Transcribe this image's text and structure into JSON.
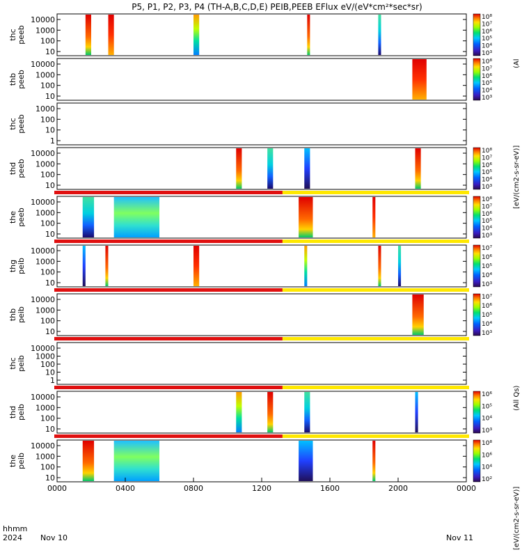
{
  "title": "P5, P1, P2, P3, P4 (TH-A,B,C,D,E) PEIB,PEEB EFlux eV/(eV*cm²*sec*sr)",
  "axis_footer": {
    "hhmm_label": "hhmm",
    "year_label": "2024",
    "date_start": "Nov 10",
    "date_end": "Nov 11",
    "x_tick_labels": [
      "0000",
      "0400",
      "0800",
      "1200",
      "1600",
      "2000",
      "0000"
    ]
  },
  "colorbar_unit_labels": [
    "(Al",
    "[eV/(cm2-s-sr-eV)]",
    "(All Qs)",
    "[eV/(cm2-s-sr-eV)]"
  ],
  "chart_data": [
    {
      "type": "heatmap",
      "panel": "thc peeb",
      "ylabel": [
        "thc",
        "peeb"
      ],
      "yscale": "log",
      "yticks": [
        "10000",
        "1000",
        "100",
        "10"
      ],
      "ylim": [
        5,
        30000
      ],
      "colorbar": {
        "scale": "log",
        "tick_labels": [
          "10³",
          "10⁴",
          "10⁵",
          "10⁶",
          "10⁷",
          "10⁸"
        ]
      },
      "bursts_hhmm": [
        [
          140,
          160
        ],
        [
          300,
          320
        ],
        [
          800,
          820
        ],
        [
          1440,
          1450
        ],
        [
          1850,
          1900
        ]
      ],
      "quality_flag_bar": false
    },
    {
      "type": "heatmap",
      "panel": "thb peeb",
      "ylabel": [
        "thb",
        "peeb"
      ],
      "yscale": "log",
      "yticks": [
        "10000",
        "1000",
        "100",
        "10"
      ],
      "ylim": [
        5,
        30000
      ],
      "colorbar": {
        "scale": "log",
        "tick_labels": [
          "10³",
          "10⁴",
          "10⁵",
          "10⁶",
          "10⁷",
          "10⁸"
        ]
      },
      "bursts_hhmm": [
        [
          2050,
          2140
        ]
      ],
      "quality_flag_bar": false
    },
    {
      "type": "heatmap",
      "panel": "thc peeb",
      "ylabel": [
        "thc",
        "peeb"
      ],
      "yscale": "log",
      "yticks": [
        "1000",
        "100",
        "10",
        "1"
      ],
      "ylim": [
        0.5,
        3000
      ],
      "colorbar": null,
      "bursts_hhmm": [],
      "quality_flag_bar": false
    },
    {
      "type": "heatmap",
      "panel": "thd peeb",
      "ylabel": [
        "thd",
        "peeb"
      ],
      "yscale": "log",
      "yticks": [
        "10000",
        "1000",
        "100",
        "10"
      ],
      "ylim": [
        5,
        30000
      ],
      "colorbar": {
        "scale": "log",
        "tick_labels": [
          "10³",
          "10⁴",
          "10⁵",
          "10⁶",
          "10⁷",
          "10⁸"
        ]
      },
      "bursts_hhmm": [
        [
          1030,
          1050
        ],
        [
          1220,
          1240
        ],
        [
          1430,
          1450
        ],
        [
          2100,
          2120
        ]
      ],
      "quality_flag_bar": false
    },
    {
      "type": "heatmap",
      "panel": "the peeb",
      "ylabel": [
        "the",
        "peeb"
      ],
      "yscale": "log",
      "yticks": [
        "10000",
        "1000",
        "100",
        "10"
      ],
      "ylim": [
        5,
        30000
      ],
      "colorbar": {
        "scale": "log",
        "tick_labels": [
          "10³",
          "10⁴",
          "10⁵",
          "10⁶",
          "10⁷",
          "10⁸"
        ]
      },
      "bursts_hhmm": [
        [
          130,
          210
        ],
        [
          320,
          600
        ],
        [
          1410,
          1500
        ],
        [
          1830,
          1840
        ]
      ],
      "quality_flag_bar": true
    },
    {
      "type": "heatmap",
      "panel": "thg peib",
      "ylabel": [
        "thg",
        "peib"
      ],
      "yscale": "log",
      "yticks": [
        "10000",
        "1000",
        "100",
        "10"
      ],
      "ylim": [
        5,
        30000
      ],
      "colorbar": {
        "scale": "log",
        "tick_labels": [
          "10³",
          "10⁴",
          "10⁵",
          "10⁶",
          "10⁷"
        ]
      },
      "bursts_hhmm": [
        [
          130,
          140
        ],
        [
          250,
          300
        ],
        [
          800,
          820
        ],
        [
          1430,
          1440
        ],
        [
          1850,
          1900
        ],
        [
          2000,
          2010
        ]
      ],
      "quality_flag_bar": true
    },
    {
      "type": "heatmap",
      "panel": "thb peib",
      "ylabel": [
        "thb",
        "peib"
      ],
      "yscale": "log",
      "yticks": [
        "10000",
        "1000",
        "100",
        "10"
      ],
      "ylim": [
        5,
        30000
      ],
      "colorbar": {
        "scale": "log",
        "tick_labels": [
          "10³",
          "10⁴",
          "10⁵",
          "10⁶",
          "10⁷"
        ]
      },
      "bursts_hhmm": [
        [
          2050,
          2130
        ]
      ],
      "quality_flag_bar": true
    },
    {
      "type": "heatmap",
      "panel": "thc peib",
      "ylabel": [
        "thc",
        "peib"
      ],
      "yscale": "log",
      "yticks": [
        "10000",
        "1000",
        "100",
        "10",
        "1"
      ],
      "ylim": [
        0.5,
        30000
      ],
      "colorbar": null,
      "bursts_hhmm": [],
      "quality_flag_bar": true
    },
    {
      "type": "heatmap",
      "panel": "thd peib",
      "ylabel": [
        "thd",
        "peib"
      ],
      "yscale": "log",
      "yticks": [
        "10000",
        "1000",
        "100",
        "10"
      ],
      "ylim": [
        5,
        30000
      ],
      "colorbar": {
        "scale": "log",
        "tick_labels": [
          "10³",
          "10⁴",
          "10⁵",
          "10⁶"
        ]
      },
      "bursts_hhmm": [
        [
          1030,
          1050
        ],
        [
          1220,
          1240
        ],
        [
          1430,
          1450
        ],
        [
          2100,
          2110
        ]
      ],
      "quality_flag_bar": true
    },
    {
      "type": "heatmap",
      "panel": "the peib",
      "ylabel": [
        "the",
        "peib"
      ],
      "yscale": "log",
      "yticks": [
        "10000",
        "1000",
        "100",
        "10"
      ],
      "ylim": [
        5,
        30000
      ],
      "colorbar": {
        "scale": "log",
        "tick_labels": [
          "10²",
          "10⁴",
          "10⁶",
          "10⁸"
        ]
      },
      "bursts_hhmm": [
        [
          130,
          210
        ],
        [
          320,
          600
        ],
        [
          1410,
          1500
        ],
        [
          1830,
          1840
        ]
      ],
      "quality_flag_bar": true
    }
  ]
}
